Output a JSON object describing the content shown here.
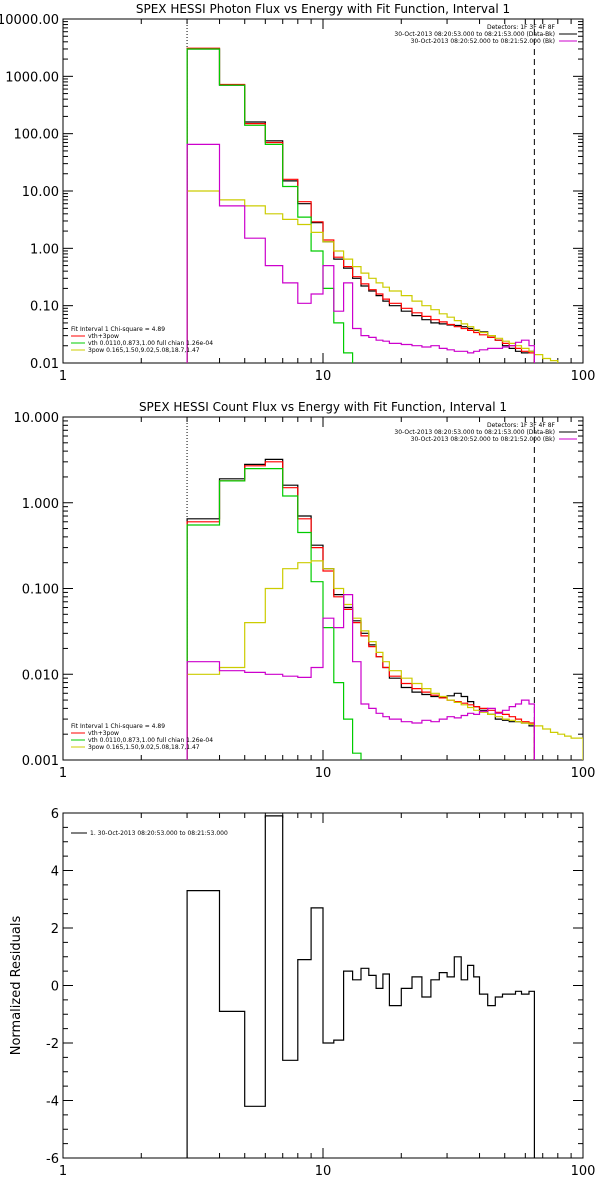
{
  "chart_data": [
    {
      "type": "line",
      "title": "SPEX HESSI Photon Flux vs Energy with Fit Function, Interval 1",
      "xlabel": "",
      "ylabel": "",
      "xscale": "log",
      "yscale": "log",
      "xlim": [
        1,
        100
      ],
      "ylim": [
        0.01,
        10000
      ],
      "xticks": [
        "1",
        "10",
        "100"
      ],
      "yticks": [
        "10000.00",
        "1000.00",
        "100.00",
        "10.00",
        "1.00",
        "0.10",
        "0.01"
      ],
      "vlines": [
        {
          "x": 3,
          "style": "dotted"
        },
        {
          "x": 65,
          "style": "dashed"
        }
      ],
      "legend_top_right": [
        {
          "text": "Detectors: 1F 3F 4F 8F",
          "color": ""
        },
        {
          "text": "30-Oct-2013 08:20:53.000 to 08:21:53.000 (Data-Bk)",
          "color": "#000000"
        },
        {
          "text": "30-Oct-2013 08:20:52.000 to 08:21:52.000 (Bk)",
          "color": "#cc00cc"
        }
      ],
      "legend_bottom_left": [
        {
          "text": "Fit Interval 1   Chi-square = 4.89",
          "color": ""
        },
        {
          "text": "vth+3pow",
          "color": "#ff0000"
        },
        {
          "text": "vth 0.0110,0.873,1.00  full chian 1.26e-04",
          "color": "#00cc00"
        },
        {
          "text": "3pow 0.165,1.50,9.02,5.08,18.7,1.47",
          "color": "#cccc00"
        }
      ],
      "series": [
        {
          "name": "Data-Bk",
          "color": "#000000",
          "step": true,
          "edges": [
            3,
            4,
            5,
            6,
            7,
            8,
            9,
            10,
            11,
            12,
            13,
            14,
            15,
            16,
            17,
            18,
            20,
            22,
            24,
            26,
            28,
            30,
            32,
            34,
            36,
            38,
            40,
            43,
            46,
            49,
            52,
            55,
            58,
            62,
            65
          ],
          "values": [
            3000,
            700,
            160,
            75,
            15,
            6,
            2.8,
            1.3,
            0.65,
            0.45,
            0.3,
            0.22,
            0.18,
            0.15,
            0.12,
            0.1,
            0.08,
            0.067,
            0.057,
            0.05,
            0.048,
            0.046,
            0.045,
            0.043,
            0.04,
            0.037,
            0.035,
            0.03,
            0.025,
            0.02,
            0.018,
            0.016,
            0.015,
            0.016
          ]
        },
        {
          "name": "vth+3pow",
          "color": "#ff0000",
          "step": true,
          "edges": [
            3,
            4,
            5,
            6,
            7,
            8,
            9,
            10,
            11,
            12,
            13,
            14,
            15,
            16,
            17,
            18,
            20,
            22,
            24,
            26,
            28,
            30,
            32,
            34,
            36,
            38,
            40,
            43,
            46,
            49,
            52,
            55,
            58,
            62,
            65
          ],
          "values": [
            3100,
            720,
            150,
            70,
            16,
            6.5,
            2.9,
            1.4,
            0.7,
            0.48,
            0.32,
            0.24,
            0.19,
            0.16,
            0.13,
            0.11,
            0.09,
            0.075,
            0.065,
            0.057,
            0.052,
            0.047,
            0.043,
            0.04,
            0.037,
            0.034,
            0.031,
            0.028,
            0.025,
            0.022,
            0.02,
            0.018,
            0.016,
            0.015
          ]
        },
        {
          "name": "vth",
          "color": "#00cc00",
          "step": true,
          "edges": [
            3,
            4,
            5,
            6,
            7,
            8,
            9,
            10,
            11,
            12,
            13,
            14
          ],
          "values": [
            3000,
            700,
            140,
            65,
            12,
            3.5,
            0.9,
            0.2,
            0.05,
            0.015,
            0.006
          ]
        },
        {
          "name": "3pow",
          "color": "#cccc00",
          "step": true,
          "edges": [
            3,
            4,
            5,
            6,
            7,
            8,
            9,
            10,
            11,
            12,
            13,
            14,
            15,
            16,
            17,
            18,
            20,
            22,
            24,
            26,
            28,
            30,
            32,
            34,
            36,
            38,
            40,
            43,
            46,
            49,
            52,
            55,
            58,
            62,
            65,
            70,
            75,
            80
          ],
          "values": [
            10,
            7,
            5.5,
            4,
            3.2,
            2.6,
            1.9,
            1.3,
            0.9,
            0.65,
            0.48,
            0.37,
            0.3,
            0.25,
            0.21,
            0.18,
            0.15,
            0.12,
            0.1,
            0.085,
            0.072,
            0.063,
            0.055,
            0.048,
            0.043,
            0.038,
            0.034,
            0.03,
            0.027,
            0.024,
            0.022,
            0.02,
            0.018,
            0.016,
            0.014,
            0.012,
            0.011
          ]
        },
        {
          "name": "Bk",
          "color": "#cc00cc",
          "step": true,
          "edges": [
            3,
            4,
            5,
            6,
            7,
            8,
            9,
            10,
            11,
            12,
            13,
            14,
            15,
            16,
            17,
            18,
            20,
            22,
            24,
            26,
            28,
            30,
            32,
            34,
            36,
            38,
            40,
            43,
            46,
            49,
            52,
            55,
            58,
            62,
            65
          ],
          "values": [
            65,
            5.5,
            1.5,
            0.5,
            0.25,
            0.11,
            0.16,
            0.5,
            0.08,
            0.25,
            0.04,
            0.03,
            0.028,
            0.025,
            0.024,
            0.022,
            0.021,
            0.02,
            0.019,
            0.02,
            0.018,
            0.017,
            0.016,
            0.016,
            0.015,
            0.016,
            0.017,
            0.018,
            0.018,
            0.019,
            0.02,
            0.023,
            0.025,
            0.02
          ]
        }
      ]
    },
    {
      "type": "line",
      "title": "SPEX HESSI Count Flux vs Energy with Fit Function, Interval 1",
      "xlabel": "",
      "ylabel": "",
      "xscale": "log",
      "yscale": "log",
      "xlim": [
        1,
        100
      ],
      "ylim": [
        0.001,
        10
      ],
      "xticks": [
        "1",
        "10",
        "100"
      ],
      "yticks": [
        "10.000",
        "1.000",
        "0.100",
        "0.010",
        "0.001"
      ],
      "vlines": [
        {
          "x": 3,
          "style": "dotted"
        },
        {
          "x": 65,
          "style": "dashed"
        }
      ],
      "legend_top_right": [
        {
          "text": "Detectors: 1F 3F 4F 8F",
          "color": ""
        },
        {
          "text": "30-Oct-2013 08:20:53.000 to 08:21:53.000 (Data-Bk)",
          "color": "#000000"
        },
        {
          "text": "30-Oct-2013 08:20:52.000 to 08:21:52.000 (Bk)",
          "color": "#cc00cc"
        }
      ],
      "legend_bottom_left": [
        {
          "text": "Fit Interval 1   Chi-square = 4.89",
          "color": ""
        },
        {
          "text": "vth+3pow",
          "color": "#ff0000"
        },
        {
          "text": "vth 0.0110,0.873,1.00  full chian 1.26e-04",
          "color": "#00cc00"
        },
        {
          "text": "3pow 0.165,1.50,9.02,5.08,18.7,1.47",
          "color": "#cccc00"
        }
      ],
      "series": [
        {
          "name": "Data-Bk",
          "color": "#000000",
          "step": true,
          "edges": [
            3,
            4,
            5,
            6,
            7,
            8,
            9,
            10,
            11,
            12,
            13,
            14,
            15,
            16,
            17,
            18,
            20,
            22,
            24,
            26,
            28,
            30,
            32,
            34,
            36,
            38,
            40,
            43,
            46,
            49,
            52,
            55,
            58,
            62,
            65
          ],
          "values": [
            0.65,
            1.9,
            2.8,
            3.2,
            1.6,
            0.7,
            0.32,
            0.17,
            0.085,
            0.06,
            0.042,
            0.03,
            0.022,
            0.016,
            0.012,
            0.009,
            0.007,
            0.0062,
            0.0058,
            0.0055,
            0.0054,
            0.0056,
            0.006,
            0.0055,
            0.0048,
            0.0042,
            0.0038,
            0.0034,
            0.003,
            0.0029,
            0.0028,
            0.0028,
            0.0027,
            0.0025
          ]
        },
        {
          "name": "vth+3pow",
          "color": "#ff0000",
          "step": true,
          "edges": [
            3,
            4,
            5,
            6,
            7,
            8,
            9,
            10,
            11,
            12,
            13,
            14,
            15,
            16,
            17,
            18,
            20,
            22,
            24,
            26,
            28,
            30,
            32,
            34,
            36,
            38,
            40,
            43,
            46,
            49,
            52,
            55,
            58,
            62,
            65
          ],
          "values": [
            0.6,
            1.8,
            2.7,
            3.0,
            1.5,
            0.65,
            0.3,
            0.16,
            0.08,
            0.057,
            0.04,
            0.028,
            0.021,
            0.016,
            0.012,
            0.0095,
            0.0078,
            0.0068,
            0.0062,
            0.0057,
            0.0053,
            0.005,
            0.0048,
            0.0046,
            0.0044,
            0.0042,
            0.004,
            0.0038,
            0.0036,
            0.0034,
            0.0032,
            0.003,
            0.0028,
            0.0027
          ]
        },
        {
          "name": "vth",
          "color": "#00cc00",
          "step": true,
          "edges": [
            3,
            4,
            5,
            6,
            7,
            8,
            9,
            10,
            11,
            12,
            13,
            14
          ],
          "values": [
            0.55,
            1.8,
            2.5,
            2.5,
            1.2,
            0.45,
            0.12,
            0.035,
            0.008,
            0.003,
            0.0012
          ]
        },
        {
          "name": "3pow",
          "color": "#cccc00",
          "step": true,
          "edges": [
            3,
            4,
            5,
            6,
            7,
            8,
            9,
            10,
            11,
            12,
            13,
            14,
            15,
            16,
            17,
            18,
            20,
            22,
            24,
            26,
            28,
            30,
            32,
            34,
            36,
            38,
            40,
            43,
            46,
            49,
            52,
            55,
            58,
            62,
            65,
            70,
            75,
            80,
            85,
            90,
            100
          ],
          "values": [
            0.01,
            0.012,
            0.04,
            0.1,
            0.17,
            0.2,
            0.21,
            0.17,
            0.1,
            0.065,
            0.045,
            0.032,
            0.024,
            0.018,
            0.014,
            0.011,
            0.009,
            0.0078,
            0.0068,
            0.006,
            0.0055,
            0.005,
            0.0047,
            0.0044,
            0.0041,
            0.0038,
            0.0036,
            0.0034,
            0.0032,
            0.003,
            0.0029,
            0.0028,
            0.0027,
            0.0026,
            0.0025,
            0.0023,
            0.0021,
            0.002,
            0.0019,
            0.0018
          ]
        },
        {
          "name": "Bk",
          "color": "#cc00cc",
          "step": true,
          "edges": [
            3,
            4,
            5,
            6,
            7,
            8,
            9,
            10,
            11,
            12,
            13,
            14,
            15,
            16,
            17,
            18,
            20,
            22,
            24,
            26,
            28,
            30,
            32,
            34,
            36,
            38,
            40,
            43,
            46,
            49,
            52,
            55,
            58,
            62,
            65
          ],
          "values": [
            0.014,
            0.011,
            0.0105,
            0.01,
            0.0095,
            0.0092,
            0.012,
            0.045,
            0.035,
            0.085,
            0.014,
            0.0045,
            0.004,
            0.0035,
            0.0032,
            0.003,
            0.0028,
            0.0027,
            0.0029,
            0.0028,
            0.003,
            0.0032,
            0.0031,
            0.0033,
            0.0035,
            0.0034,
            0.0037,
            0.004,
            0.0035,
            0.0038,
            0.0042,
            0.0045,
            0.005,
            0.0045
          ]
        }
      ]
    },
    {
      "type": "line",
      "title": "",
      "xlabel": "",
      "ylabel": "Normalized Residuals",
      "xscale": "log",
      "yscale": "linear",
      "xlim": [
        1,
        100
      ],
      "ylim": [
        -6,
        6
      ],
      "xticks": [
        "1",
        "10",
        "100"
      ],
      "yticks": [
        "6",
        "4",
        "2",
        "0",
        "-2",
        "-4",
        "-6"
      ],
      "legend_top_left": [
        {
          "text": "1. 30-Oct-2013 08:20:53.000 to 08:21:53.000",
          "color": "#000000"
        }
      ],
      "series": [
        {
          "name": "1. 30-Oct-2013 08:20:53.000 to 08:21:53.000",
          "color": "#000000",
          "step": true,
          "edges": [
            3,
            4,
            5,
            6,
            7,
            8,
            9,
            10,
            11,
            12,
            13,
            14,
            15,
            16,
            17,
            18,
            20,
            22,
            24,
            26,
            28,
            30,
            32,
            34,
            36,
            38,
            40,
            43,
            46,
            49,
            52,
            55,
            58,
            62,
            65
          ],
          "values": [
            3.3,
            -0.9,
            -4.2,
            5.9,
            -2.6,
            0.9,
            2.7,
            -2.0,
            -1.9,
            0.5,
            0.2,
            0.6,
            0.35,
            -0.1,
            0.4,
            -0.7,
            -0.1,
            0.3,
            -0.4,
            0.2,
            0.45,
            0.3,
            1.0,
            0.2,
            0.7,
            0.3,
            -0.3,
            -0.7,
            -0.4,
            -0.3,
            -0.3,
            -0.2,
            -0.3,
            -0.2
          ]
        }
      ]
    }
  ]
}
